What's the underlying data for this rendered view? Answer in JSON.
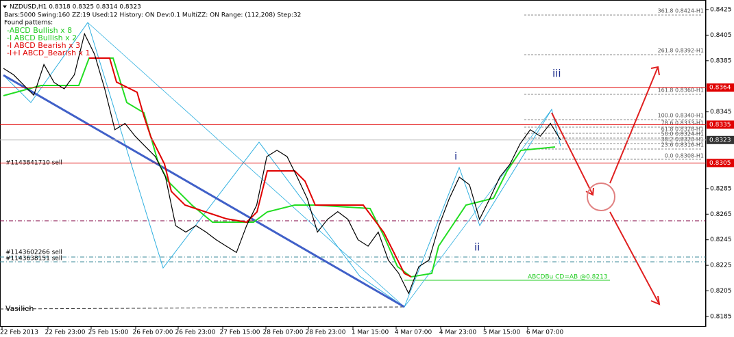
{
  "chart_data": {
    "type": "line",
    "header": "NZDUSD,H1  0.8318 0.8325 0.8314 0.8323",
    "info": "Bars:5000  Swing:160  ZZ:19  Used:12  History: ON Dev:0.1  MultiZZ: ON  Range: (112,208)  Step:32",
    "patterns_title": "Found patterns:",
    "patterns": [
      {
        "text": "-ABCD Bullish x 8",
        "color": "#22cc22"
      },
      {
        "text": "-I ABCD Bullish x 2",
        "color": "#22cc22"
      },
      {
        "text": "-I ABCD Bearish x 3",
        "color": "#e00000"
      },
      {
        "text": "-I+I ABCD_Bearish x 1",
        "color": "#e00000"
      }
    ],
    "categories": [
      "22 Feb 2013",
      "22 Feb 23:00",
      "25 Feb 15:00",
      "26 Feb 07:00",
      "26 Feb 23:00",
      "27 Feb 15:00",
      "28 Feb 07:00",
      "28 Feb 23:00",
      "1 Mar 15:00",
      "4 Mar 07:00",
      "4 Mar 23:00",
      "5 Mar 15:00",
      "6 Mar 07:00"
    ],
    "closes": [
      0.8379,
      0.8374,
      0.8366,
      0.8358,
      0.8382,
      0.8368,
      0.8363,
      0.8374,
      0.8406,
      0.839,
      0.8363,
      0.8331,
      0.8336,
      0.8326,
      0.8318,
      0.831,
      0.8294,
      0.8256,
      0.8251,
      0.8256,
      0.8251,
      0.8245,
      0.824,
      0.8235,
      0.8256,
      0.8272,
      0.831,
      0.8315,
      0.831,
      0.8294,
      0.8277,
      0.8251,
      0.8261,
      0.8267,
      0.8261,
      0.8245,
      0.824,
      0.8251,
      0.8229,
      0.8219,
      0.8203,
      0.8224,
      0.8229,
      0.8256,
      0.8277,
      0.8294,
      0.8288,
      0.8261,
      0.8277,
      0.8294,
      0.8304,
      0.832,
      0.8331,
      0.8326,
      0.8336,
      0.8323
    ],
    "ylim": [
      0.81775,
      0.84298
    ],
    "yticks": [
      0.8425,
      0.8405,
      0.8385,
      0.8345,
      0.8285,
      0.8265,
      0.8245,
      0.8225,
      0.8205,
      0.8185
    ],
    "price_tags": [
      {
        "price": 0.8364,
        "color": "#e00000"
      },
      {
        "price": 0.8335,
        "color": "#e00000"
      },
      {
        "price": 0.8323,
        "color": "#333333"
      },
      {
        "price": 0.8305,
        "color": "#e00000"
      }
    ],
    "fib_labels": [
      "361.8 0.8424-H1",
      "261.8 0.8392-H1",
      "161.8 0.8360-H1",
      "100.0 0.8340-H1",
      "78.6 0.8333-H1",
      "61.8 0.8328-H1",
      "50.0 0.8324-H1",
      "38.2 0.8320-H1",
      "23.6 0.8316-H1",
      "0.0 0.8308-H1"
    ],
    "orders": [
      "#1143841710 sell",
      "#1143602266 sell",
      "#1143638151 sell"
    ],
    "signature": "Vasilich",
    "abcd_label": "ABCDBu CD=AB  @0.8213",
    "waves": [
      "i",
      "ii",
      "iii"
    ]
  }
}
